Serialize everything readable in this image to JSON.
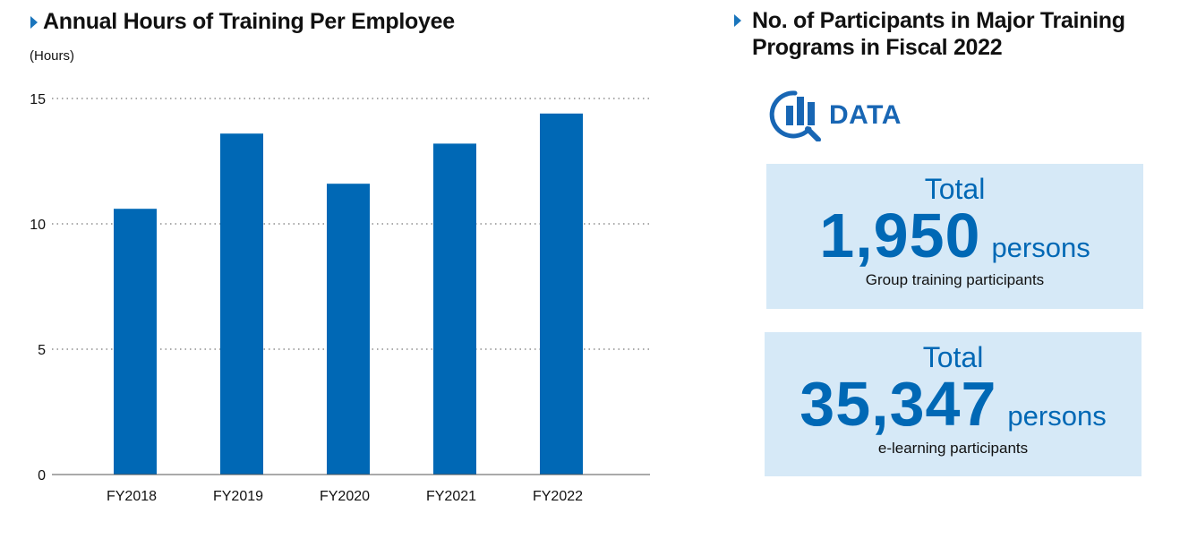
{
  "left_panel": {
    "title": "Annual Hours of Training Per Employee",
    "unit_label": "(Hours)"
  },
  "chart_data": {
    "type": "bar",
    "title": "Annual Hours of Training Per Employee",
    "ylabel": "(Hours)",
    "xlabel": "",
    "categories": [
      "FY2018",
      "FY2019",
      "FY2020",
      "FY2021",
      "FY2022"
    ],
    "values": [
      10.6,
      13.6,
      11.6,
      13.2,
      14.4
    ],
    "ylim": [
      0,
      15
    ],
    "yticks": [
      0,
      5,
      10,
      15
    ],
    "grid": true,
    "bar_color": "#0068b5"
  },
  "right_panel": {
    "title_line1": "No. of Participants in Major Training",
    "title_line2": "Programs in Fiscal 2022",
    "logo_text": "DATA",
    "cards": [
      {
        "total": "Total",
        "number": "1,950",
        "unit": "persons",
        "caption": "Group training participants"
      },
      {
        "total": "Total",
        "number": "35,347",
        "unit": "persons",
        "caption": "e-learning participants"
      }
    ]
  },
  "colors": {
    "accent": "#1a75bc",
    "bar": "#0068b5",
    "card_bg": "#d6e9f7"
  }
}
